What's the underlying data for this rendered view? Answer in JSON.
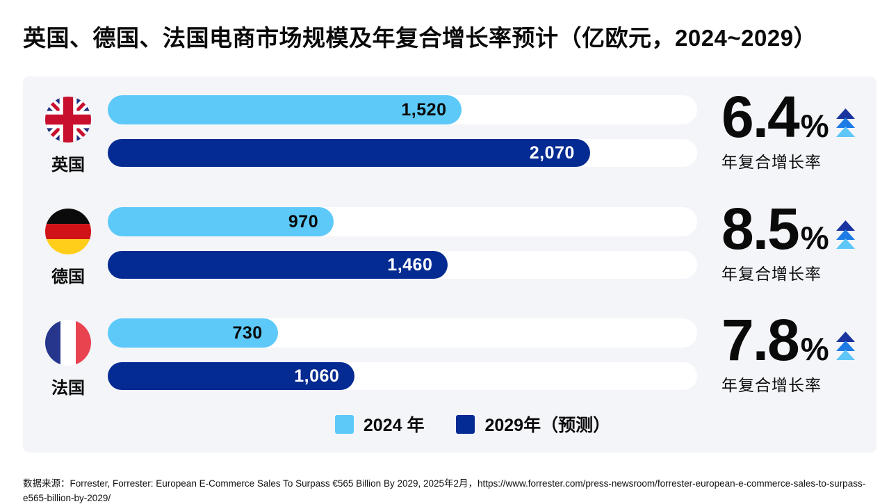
{
  "title": "英国、德国、法国电商市场规模及年复合增长率预计（亿欧元，2024~2029）",
  "percent_sign": "%",
  "cagr_label": "年复合增长率",
  "colors": {
    "bar_2024": "#5CC9F8",
    "bar_2029": "#042B92",
    "panel_bg": "#F4F5F9",
    "track": "#FFFFFF",
    "arrow_top": "#19339F",
    "arrow_mid": "#1E7BE5",
    "arrow_bottom": "#5FC6F8"
  },
  "countries": [
    {
      "name": "英国",
      "flag": "uk-flag",
      "value_2024": "1,520",
      "value_2029": "2,070",
      "cagr": "6.4"
    },
    {
      "name": "德国",
      "flag": "germany-flag",
      "value_2024": "970",
      "value_2029": "1,460",
      "cagr": "8.5"
    },
    {
      "name": "法国",
      "flag": "france-flag",
      "value_2024": "730",
      "value_2029": "1,060",
      "cagr": "7.8"
    }
  ],
  "legend": [
    {
      "label": "2024 年",
      "color": "#5CC9F8"
    },
    {
      "label": "2029年（预测）",
      "color": "#042B92"
    }
  ],
  "source": "数据来源：Forrester, Forrester: European E-Commerce Sales To Surpass €565 Billion By 2029, 2025年2月，https://www.forrester.com/press-newsroom/forrester-european-e-commerce-sales-to-surpass-e565-billion-by-2029/",
  "chart_data": {
    "type": "bar",
    "orientation": "horizontal",
    "title": "英国、德国、法国电商市场规模及年复合增长率预计（亿欧元，2024~2029）",
    "unit": "亿欧元",
    "categories": [
      "英国",
      "德国",
      "法国"
    ],
    "series": [
      {
        "name": "2024 年",
        "values": [
          1520,
          970,
          730
        ]
      },
      {
        "name": "2029年（预测）",
        "values": [
          2070,
          1460,
          1060
        ]
      }
    ],
    "cagr_percent": [
      6.4,
      8.5,
      7.8
    ],
    "cagr_label": "年复合增长率",
    "xlim": [
      0,
      2530
    ],
    "grid": false,
    "legend_position": "bottom"
  }
}
